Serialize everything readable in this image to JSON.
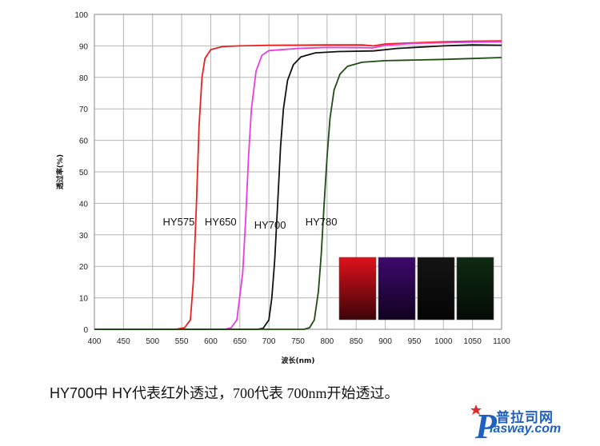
{
  "chart_data": {
    "type": "line",
    "xlabel": "波长(nm)",
    "ylabel": "透过率(%)",
    "xlim": [
      400,
      1100
    ],
    "ylim": [
      0,
      100
    ],
    "x_ticks": [
      400,
      450,
      500,
      550,
      600,
      650,
      700,
      750,
      800,
      850,
      900,
      950,
      1000,
      1050,
      1100
    ],
    "y_ticks": [
      0,
      10,
      20,
      30,
      40,
      50,
      60,
      70,
      80,
      90,
      100
    ],
    "grid": true,
    "series": [
      {
        "name": "HY575",
        "color": "#e8231f",
        "label_pos": [
          545,
          33
        ],
        "points": [
          [
            400,
            0
          ],
          [
            500,
            0
          ],
          [
            540,
            0
          ],
          [
            555,
            0.5
          ],
          [
            565,
            3
          ],
          [
            570,
            15
          ],
          [
            575,
            38
          ],
          [
            580,
            65
          ],
          [
            585,
            80
          ],
          [
            590,
            86
          ],
          [
            600,
            88.8
          ],
          [
            620,
            89.8
          ],
          [
            650,
            90
          ],
          [
            700,
            90.2
          ],
          [
            800,
            90.3
          ],
          [
            860,
            90.3
          ],
          [
            880,
            90
          ],
          [
            900,
            90.6
          ],
          [
            950,
            91
          ],
          [
            1000,
            91.3
          ],
          [
            1050,
            91.5
          ],
          [
            1100,
            91.6
          ]
        ]
      },
      {
        "name": "HY650",
        "color": "#e83ee0",
        "label_pos": [
          617,
          33
        ],
        "points": [
          [
            400,
            0
          ],
          [
            600,
            0
          ],
          [
            625,
            0
          ],
          [
            635,
            0.5
          ],
          [
            645,
            3
          ],
          [
            655,
            18
          ],
          [
            660,
            35
          ],
          [
            665,
            55
          ],
          [
            670,
            70
          ],
          [
            678,
            82
          ],
          [
            688,
            87
          ],
          [
            700,
            88.5
          ],
          [
            750,
            89.2
          ],
          [
            800,
            89.5
          ],
          [
            880,
            89.4
          ],
          [
            900,
            90.2
          ],
          [
            950,
            90.8
          ],
          [
            1000,
            91
          ],
          [
            1050,
            91.2
          ],
          [
            1100,
            91.3
          ]
        ]
      },
      {
        "name": "HY700",
        "color": "#111111",
        "label_pos": [
          702,
          32
        ],
        "points": [
          [
            400,
            0
          ],
          [
            680,
            0
          ],
          [
            690,
            0.3
          ],
          [
            700,
            3
          ],
          [
            705,
            10
          ],
          [
            710,
            22
          ],
          [
            715,
            40
          ],
          [
            720,
            58
          ],
          [
            725,
            70
          ],
          [
            732,
            79
          ],
          [
            742,
            84
          ],
          [
            755,
            86.5
          ],
          [
            780,
            87.8
          ],
          [
            820,
            88.2
          ],
          [
            880,
            88.4
          ],
          [
            920,
            89.2
          ],
          [
            1000,
            90
          ],
          [
            1050,
            90.3
          ],
          [
            1100,
            90.2
          ]
        ]
      },
      {
        "name": "HY780",
        "color": "#1e4d14",
        "label_pos": [
          790,
          33
        ],
        "points": [
          [
            400,
            0
          ],
          [
            760,
            0
          ],
          [
            770,
            0.5
          ],
          [
            778,
            3
          ],
          [
            785,
            12
          ],
          [
            790,
            24
          ],
          [
            795,
            40
          ],
          [
            800,
            55
          ],
          [
            805,
            67
          ],
          [
            812,
            76
          ],
          [
            822,
            81
          ],
          [
            835,
            83.5
          ],
          [
            860,
            84.8
          ],
          [
            900,
            85.3
          ],
          [
            950,
            85.5
          ],
          [
            1000,
            85.7
          ],
          [
            1050,
            86
          ],
          [
            1100,
            86.3
          ]
        ]
      }
    ],
    "swatches": [
      {
        "name": "HY575",
        "top": "#e0101b",
        "bottom": "#3a0508"
      },
      {
        "name": "HY650",
        "top": "#3e0a6e",
        "bottom": "#10021f"
      },
      {
        "name": "HY700",
        "top": "#141414",
        "bottom": "#050505"
      },
      {
        "name": "HY780",
        "top": "#0f2a12",
        "bottom": "#040b05"
      }
    ]
  },
  "caption": {
    "part1": "HY700中 HY代表红外透过，",
    "part2": "700代表 700nm开始透过。"
  },
  "logo": {
    "letter": "P",
    "cn": "普拉司网",
    "en": "lasway.com"
  }
}
